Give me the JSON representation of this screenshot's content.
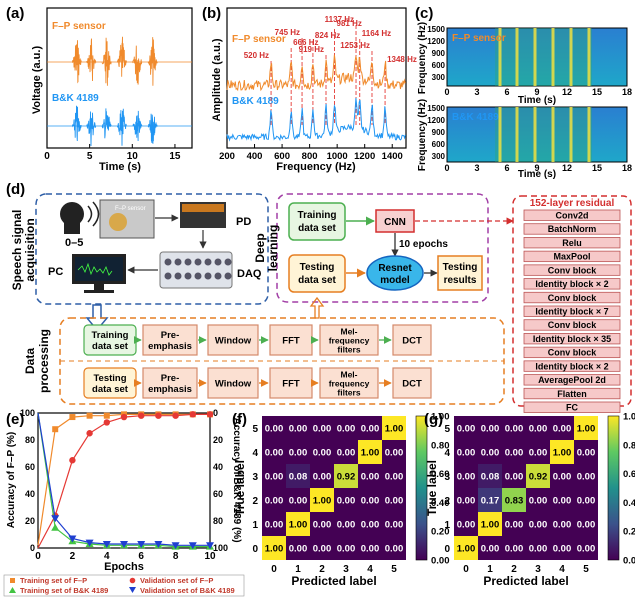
{
  "panels": {
    "a": {
      "label": "(a)",
      "xlabel": "Time (s)",
      "ylabel": "Voltage (a.u.)",
      "xticks": [
        "0",
        "5",
        "10",
        "15"
      ],
      "legend": [
        "F–P sensor",
        "B&K 4189"
      ]
    },
    "b": {
      "label": "(b)",
      "xlabel": "Frequency (Hz)",
      "ylabel": "Amplitude (a.u.)",
      "xticks": [
        "200",
        "400",
        "600",
        "800",
        "1000",
        "1200",
        "1400"
      ],
      "legend": [
        "F–P sensor",
        "B&K 4189"
      ],
      "peaks": [
        "520 Hz",
        "666 Hz",
        "745 Hz",
        "824 Hz",
        "919 Hz",
        "981 Hz",
        "1137 Hz",
        "1164 Hz",
        "1253 Hz",
        "1348 Hz"
      ]
    },
    "c": {
      "label": "(c)",
      "xlabel": "Time (s)",
      "ylabel": "Frequency (Hz)",
      "xticks": [
        "0",
        "3",
        "6",
        "9",
        "12",
        "15",
        "18"
      ],
      "yticks": [
        "1500",
        "1200",
        "900",
        "600",
        "300"
      ],
      "legend": [
        "F–P sensor",
        "B&K 4189"
      ]
    },
    "d": {
      "label": "(d)",
      "acq_title": "Speech signal acquisition",
      "speaker_label": "0–5",
      "fp_label": "F–P sensor",
      "pd": "PD",
      "pc": "PC",
      "daq": "DAQ",
      "dl_title": "Deep learning",
      "training": "Training data set",
      "testing": "Testing data set",
      "cnn": "CNN",
      "epochs": "10 epochs",
      "resnet": "Resnet model",
      "results": "Testing results",
      "dp_title": "Data processing",
      "pipeline": [
        "Pre-emphasis",
        "Window",
        "FFT",
        "Mel-frequency filters",
        "DCT"
      ],
      "resnet_title": "152-layer residual",
      "resnet_layers": [
        "Conv2d",
        "BatchNorm",
        "Relu",
        "MaxPool",
        "Conv block",
        "Identity block × 2",
        "Conv block",
        "Identity block × 7",
        "Conv block",
        "Identity block × 35",
        "Conv block",
        "Identity block × 2",
        "AveragePool 2d",
        "Flatten",
        "FC"
      ]
    },
    "e": {
      "label": "(e)",
      "xlabel": "Epochs",
      "ylabel_left": "Accuracy of F–P (%)",
      "ylabel_right": "Accuracy of B&K 4189 (%)",
      "legend": [
        "Training set of F–P",
        "Training set of B&K 4189",
        "Validation set of F–P",
        "Validation set of B&K 4189"
      ]
    },
    "f": {
      "label": "(f)"
    },
    "g": {
      "label": "(g)"
    },
    "cm_common": {
      "xlabel": "Predicted label",
      "ylabel": "True label",
      "classes": [
        "0",
        "1",
        "2",
        "3",
        "4",
        "5"
      ],
      "cbar_ticks": [
        "1.00",
        "0.80",
        "0.60",
        "0.40",
        "0.20",
        "0.00"
      ]
    }
  },
  "chart_data": [
    {
      "type": "line",
      "title": "",
      "xlabel": "Time (s)",
      "ylabel": "Voltage (a.u.)",
      "xlim": [
        0,
        17
      ],
      "series": [
        {
          "name": "F–P sensor",
          "burst_centers_s": [
            3.5,
            5.2,
            7.0,
            8.8,
            10.6,
            12.4
          ],
          "color": "#f08a2c"
        },
        {
          "name": "B&K 4189",
          "burst_centers_s": [
            3.5,
            5.2,
            7.0,
            8.8,
            10.6,
            12.4
          ],
          "color": "#2196f3"
        }
      ]
    },
    {
      "type": "line",
      "title": "",
      "xlabel": "Frequency (Hz)",
      "ylabel": "Amplitude (a.u.)",
      "xlim": [
        200,
        1500
      ],
      "peaks_hz": [
        520,
        666,
        745,
        824,
        919,
        981,
        1137,
        1164,
        1253,
        1348
      ],
      "series": [
        {
          "name": "F–P sensor",
          "color": "#f08a2c"
        },
        {
          "name": "B&K 4189",
          "color": "#2196f3"
        }
      ]
    },
    {
      "type": "heatmap",
      "title": "",
      "xlabel": "Time (s)",
      "ylabel": "Frequency (Hz)",
      "xlim": [
        0,
        18
      ],
      "ylim": [
        0,
        1500
      ],
      "series": [
        {
          "name": "F–P sensor"
        },
        {
          "name": "B&K 4189"
        }
      ]
    },
    {
      "type": "scatter",
      "title": "",
      "xlabel": "Epochs",
      "xlim": [
        0,
        10
      ],
      "ylim": [
        0,
        100
      ],
      "x": [
        1,
        2,
        3,
        4,
        5,
        6,
        7,
        8,
        9,
        10
      ],
      "series": [
        {
          "name": "Training set of F–P",
          "axis": "left",
          "values": [
            88,
            97,
            98,
            98,
            99,
            99,
            99,
            99,
            99,
            99
          ],
          "color": "#f08a2c",
          "marker": "square"
        },
        {
          "name": "Validation set of F–P",
          "axis": "left",
          "values": [
            24,
            65,
            85,
            93,
            97,
            98,
            98,
            98,
            99,
            99
          ],
          "color": "#e53935",
          "marker": "circle"
        },
        {
          "name": "Training set of B&K 4189",
          "axis": "right",
          "values": [
            85,
            95,
            97,
            98,
            98,
            98,
            98,
            99,
            99,
            99
          ],
          "color": "#43c443",
          "marker": "triangle-up"
        },
        {
          "name": "Validation set of B&K 4189",
          "axis": "right",
          "values": [
            78,
            93,
            96,
            97,
            97,
            97,
            97,
            98,
            98,
            98
          ],
          "color": "#1f3fd0",
          "marker": "triangle-down"
        }
      ]
    },
    {
      "type": "heatmap",
      "title": "",
      "xlabel": "Predicted label",
      "ylabel": "True label",
      "categories": [
        "0",
        "1",
        "2",
        "3",
        "4",
        "5"
      ],
      "matrix": [
        [
          1.0,
          0.0,
          0.0,
          0.0,
          0.0,
          0.0
        ],
        [
          0.0,
          1.0,
          0.0,
          0.0,
          0.0,
          0.0
        ],
        [
          0.0,
          0.0,
          1.0,
          0.0,
          0.0,
          0.0
        ],
        [
          0.0,
          0.08,
          0.0,
          0.92,
          0.0,
          0.0
        ],
        [
          0.0,
          0.0,
          0.0,
          0.0,
          1.0,
          0.0
        ],
        [
          0.0,
          0.0,
          0.0,
          0.0,
          0.0,
          1.0
        ]
      ]
    },
    {
      "type": "heatmap",
      "title": "",
      "xlabel": "Predicted label",
      "ylabel": "True label",
      "categories": [
        "0",
        "1",
        "2",
        "3",
        "4",
        "5"
      ],
      "matrix": [
        [
          1.0,
          0.0,
          0.0,
          0.0,
          0.0,
          0.0
        ],
        [
          0.0,
          1.0,
          0.0,
          0.0,
          0.0,
          0.0
        ],
        [
          0.0,
          0.17,
          0.83,
          0.0,
          0.0,
          0.0
        ],
        [
          0.0,
          0.08,
          0.0,
          0.92,
          0.0,
          0.0
        ],
        [
          0.0,
          0.0,
          0.0,
          0.0,
          1.0,
          0.0
        ],
        [
          0.0,
          0.0,
          0.0,
          0.0,
          0.0,
          1.0
        ]
      ]
    }
  ]
}
